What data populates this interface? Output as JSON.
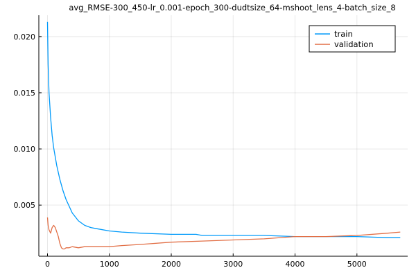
{
  "chart_data": {
    "type": "line",
    "title": "avg_RMSE-300_450-lr_0.001-epoch_300-dudtsize_64-mshoot_lens_4-batch_size_8",
    "xlabel": "",
    "ylabel": "",
    "xlim": [
      -140,
      5820
    ],
    "ylim": [
      0.00045,
      0.0219
    ],
    "grid": true,
    "legend_position": "top-right",
    "x_ticks": [
      0,
      1000,
      2000,
      3000,
      4000,
      5000
    ],
    "x_tick_labels": [
      "0",
      "1000",
      "2000",
      "3000",
      "4000",
      "5000"
    ],
    "y_ticks": [
      0.005,
      0.01,
      0.015,
      0.02
    ],
    "y_tick_labels": [
      "0.005",
      "0.010",
      "0.015",
      "0.020"
    ],
    "series": [
      {
        "name": "train",
        "color": "#009AFA",
        "x": [
          0,
          10,
          25,
          50,
          75,
          100,
          150,
          200,
          250,
          300,
          400,
          500,
          600,
          700,
          800,
          1000,
          1200,
          1500,
          2000,
          2400,
          2500,
          3000,
          3500,
          4000,
          4500,
          5000,
          5500,
          5700
        ],
        "y": [
          0.0213,
          0.0175,
          0.015,
          0.0128,
          0.0112,
          0.0101,
          0.0085,
          0.0073,
          0.0063,
          0.0055,
          0.0043,
          0.0036,
          0.0032,
          0.003,
          0.0029,
          0.0027,
          0.0026,
          0.0025,
          0.0024,
          0.0024,
          0.0023,
          0.0023,
          0.0023,
          0.0022,
          0.0022,
          0.0022,
          0.0021,
          0.0021
        ]
      },
      {
        "name": "validation",
        "color": "#E26F46",
        "x": [
          0,
          10,
          25,
          50,
          75,
          100,
          125,
          150,
          175,
          200,
          225,
          250,
          275,
          300,
          350,
          400,
          500,
          600,
          800,
          1000,
          1200,
          1500,
          2000,
          2500,
          3000,
          3500,
          4000,
          4500,
          5000,
          5500,
          5700
        ],
        "y": [
          0.0039,
          0.0032,
          0.0028,
          0.0025,
          0.003,
          0.0032,
          0.003,
          0.0026,
          0.0022,
          0.0016,
          0.0012,
          0.0011,
          0.0011,
          0.0012,
          0.0012,
          0.0013,
          0.0012,
          0.0013,
          0.0013,
          0.0013,
          0.0014,
          0.0015,
          0.0017,
          0.0018,
          0.0019,
          0.002,
          0.0022,
          0.0022,
          0.0023,
          0.0025,
          0.0026
        ]
      }
    ]
  }
}
